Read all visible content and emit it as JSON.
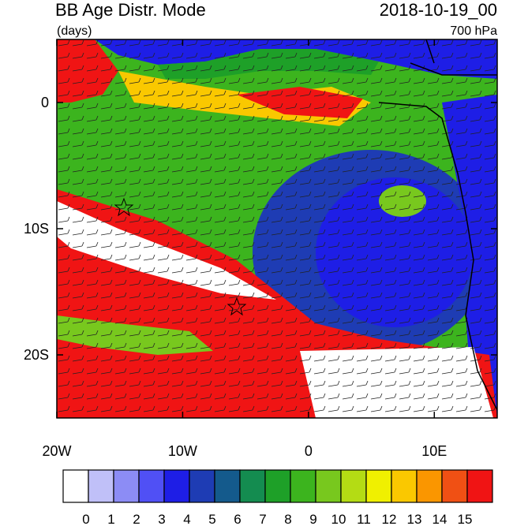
{
  "title": "BB Age Distr. Mode",
  "units": "(days)",
  "date": "2018-10-19_00",
  "level": "700 hPa",
  "map": {
    "lonlim": [
      -20,
      15
    ],
    "latlim": [
      -25,
      5
    ],
    "lonticks": [
      {
        "value": -20,
        "label": "20W"
      },
      {
        "value": -10,
        "label": "10W"
      },
      0,
      {
        "value": 10,
        "label": "10E"
      }
    ],
    "latticks": [
      0,
      {
        "value": -10,
        "label": "10S"
      },
      {
        "value": -20,
        "label": "20S"
      }
    ]
  },
  "colorbar": {
    "levels": [
      0,
      1,
      2,
      3,
      4,
      5,
      6,
      7,
      8,
      9,
      10,
      11,
      12,
      13,
      14,
      15
    ],
    "colors": [
      "#ffffff",
      "#c0c0f8",
      "#8c8cf5",
      "#5050f5",
      "#1e1ee6",
      "#1e3cb4",
      "#145a8c",
      "#148c50",
      "#1ea028",
      "#3cb41e",
      "#78c81e",
      "#b4dc14",
      "#f0f000",
      "#fac800",
      "#fa9600",
      "#f05014",
      "#f01414"
    ]
  }
}
